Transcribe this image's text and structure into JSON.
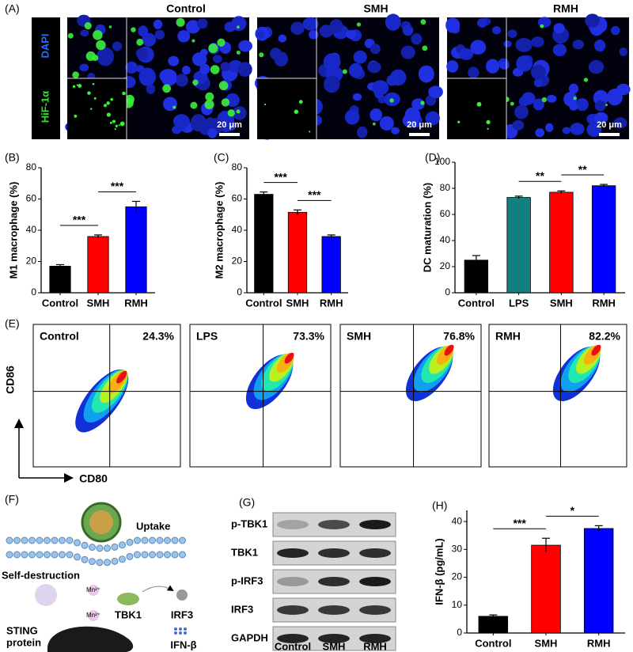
{
  "panels": {
    "A": {
      "label": "(A)",
      "columns": [
        "Control",
        "SMH",
        "RMH"
      ],
      "stains": [
        "DAPI",
        "HiF-1α"
      ],
      "scale_bar": "20 μm"
    },
    "E": {
      "label": "(E)",
      "y_axis": "CD86",
      "x_axis": "CD80",
      "plots": [
        {
          "name": "Control",
          "percent": "24.3%"
        },
        {
          "name": "LPS",
          "percent": "73.3%"
        },
        {
          "name": "SMH",
          "percent": "76.8%"
        },
        {
          "name": "RMH",
          "percent": "82.2%"
        }
      ]
    },
    "F": {
      "label": "(F)",
      "uptake": "Uptake",
      "self_destruction": "Self-destruction",
      "tbk1": "TBK1",
      "irf3": "IRF3",
      "sting": [
        "STING",
        "protein"
      ],
      "ifn": "IFN-β",
      "mn": "Mn²⁺"
    },
    "G": {
      "label": "(G)",
      "rows": [
        "p-TBK1",
        "TBK1",
        "p-IRF3",
        "IRF3",
        "GAPDH"
      ],
      "lanes": [
        "Control",
        "SMH",
        "RMH"
      ]
    }
  },
  "chart_data": [
    {
      "type": "bar",
      "panel_label": "(B)",
      "y_label": "M1 macrophage (%)",
      "categories": [
        "Control",
        "SMH",
        "RMH"
      ],
      "values": [
        17,
        36,
        55
      ],
      "errors": [
        1,
        1,
        3.5
      ],
      "colors": [
        "#000000",
        "#ff0000",
        "#0000ff"
      ],
      "ylim": [
        0,
        80
      ],
      "yticks": [
        0,
        20,
        40,
        60,
        80
      ],
      "annotations": [
        {
          "text": "***",
          "between": [
            "Control",
            "SMH"
          ]
        },
        {
          "text": "***",
          "between": [
            "SMH",
            "RMH"
          ]
        }
      ]
    },
    {
      "type": "bar",
      "panel_label": "(C)",
      "y_label": "M2 macrophage (%)",
      "categories": [
        "Control",
        "SMH",
        "RMH"
      ],
      "values": [
        63,
        51.5,
        36
      ],
      "errors": [
        1.5,
        1.5,
        1
      ],
      "colors": [
        "#000000",
        "#ff0000",
        "#0000ff"
      ],
      "ylim": [
        0,
        80
      ],
      "yticks": [
        0,
        20,
        40,
        60,
        80
      ],
      "annotations": [
        {
          "text": "***",
          "between": [
            "Control",
            "SMH"
          ]
        },
        {
          "text": "***",
          "between": [
            "SMH",
            "RMH"
          ]
        }
      ]
    },
    {
      "type": "bar",
      "panel_label": "(D)",
      "y_label": "DC maturation (%)",
      "categories": [
        "Control",
        "LPS",
        "SMH",
        "RMH"
      ],
      "values": [
        25,
        73,
        77,
        82
      ],
      "errors": [
        3.5,
        1,
        1,
        1
      ],
      "colors": [
        "#000000",
        "#138080",
        "#ff0000",
        "#0000ff"
      ],
      "ylim": [
        0,
        100
      ],
      "yticks": [
        0,
        20,
        40,
        60,
        80,
        100
      ],
      "annotations": [
        {
          "text": "**",
          "between": [
            "LPS",
            "SMH"
          ]
        },
        {
          "text": "**",
          "between": [
            "SMH",
            "RMH"
          ]
        }
      ]
    },
    {
      "type": "bar",
      "panel_label": "(H)",
      "y_label": "IFN-β (pg/mL)",
      "categories": [
        "Control",
        "SMH",
        "RMH"
      ],
      "values": [
        6,
        31.5,
        37.5
      ],
      "errors": [
        0.5,
        2.5,
        1
      ],
      "colors": [
        "#000000",
        "#ff0000",
        "#0000ff"
      ],
      "ylim": [
        0,
        44
      ],
      "yticks": [
        0,
        10,
        20,
        30,
        40
      ],
      "annotations": [
        {
          "text": "***",
          "between": [
            "Control",
            "SMH"
          ]
        },
        {
          "text": "*",
          "between": [
            "SMH",
            "RMH"
          ]
        }
      ]
    }
  ]
}
